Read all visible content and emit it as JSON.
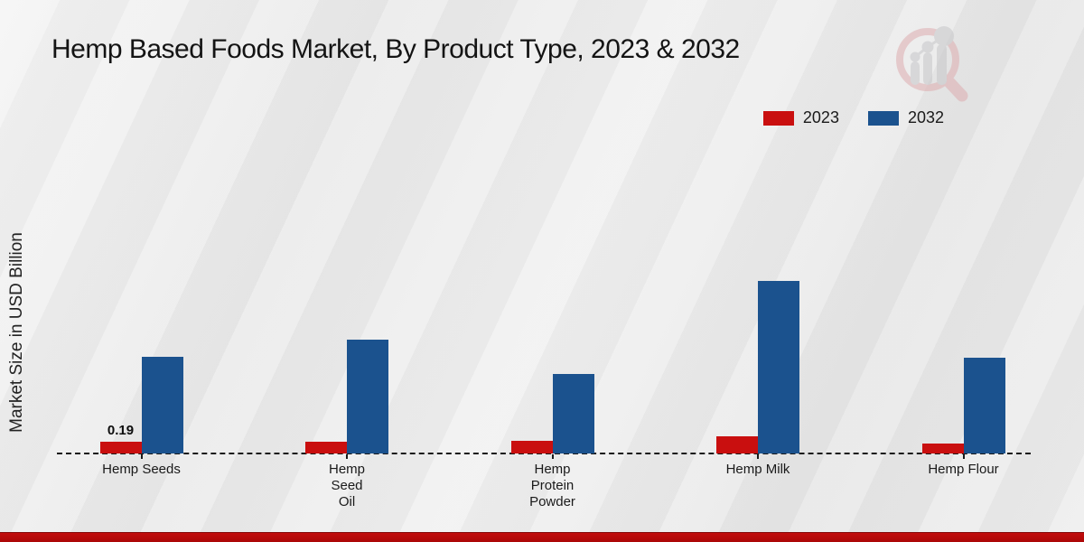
{
  "title": "Hemp Based Foods Market, By Product Type, 2023 & 2032",
  "ylabel": "Market Size in USD Billion",
  "legend": {
    "items": [
      {
        "label": "2023",
        "color": "#c90f0f"
      },
      {
        "label": "2032",
        "color": "#1b528e"
      }
    ]
  },
  "colors": {
    "series_2023": "#c90f0f",
    "series_2032": "#1b528e",
    "footer_band": "#b20909",
    "axis": "#1a1a1a",
    "background": "#ececec"
  },
  "chart_data": {
    "type": "bar",
    "title": "Hemp Based Foods Market, By Product Type, 2023 & 2032",
    "xlabel": "",
    "ylabel": "Market Size in USD Billion",
    "ylim": [
      0,
      3
    ],
    "grid": false,
    "legend_position": "top-right",
    "categories": [
      "Hemp Seeds",
      "Hemp Seed Oil",
      "Hemp Protein Powder",
      "Hemp Milk",
      "Hemp Flour"
    ],
    "category_label_lines": [
      [
        "Hemp Seeds"
      ],
      [
        "Hemp",
        "Seed",
        "Oil"
      ],
      [
        "Hemp",
        "Protein",
        "Powder"
      ],
      [
        "Hemp Milk"
      ],
      [
        "Hemp Flour"
      ]
    ],
    "series": [
      {
        "name": "2023",
        "color": "#c90f0f",
        "values": [
          0.19,
          0.19,
          0.2,
          0.28,
          0.16
        ]
      },
      {
        "name": "2032",
        "color": "#1b528e",
        "values": [
          1.56,
          1.84,
          1.28,
          2.79,
          1.55
        ]
      }
    ],
    "data_labels": [
      {
        "series_index": 0,
        "category_index": 0,
        "text": "0.19"
      }
    ]
  }
}
